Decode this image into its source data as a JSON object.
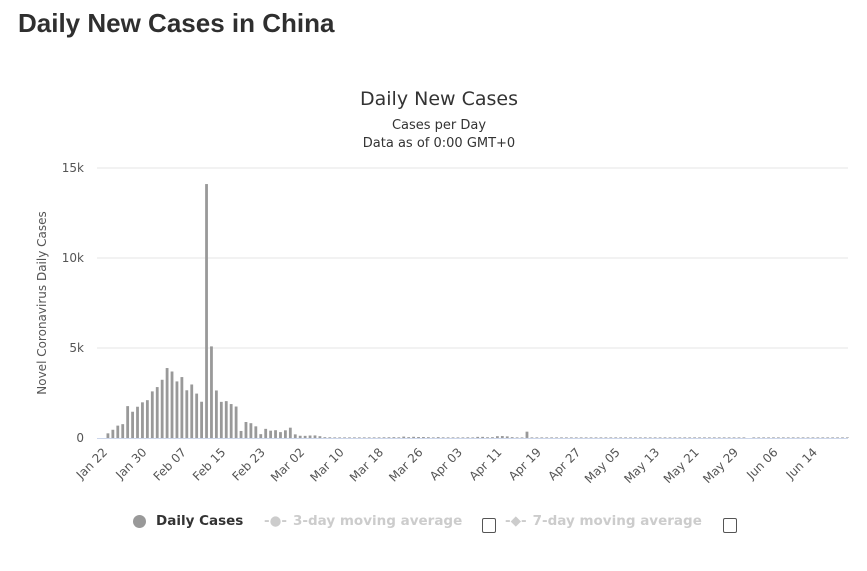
{
  "page": {
    "title": "Daily New Cases in China"
  },
  "chart_data": {
    "type": "bar",
    "title": "Daily New Cases",
    "subtitle": [
      "Cases per Day",
      "Data as of 0:00 GMT+0"
    ],
    "xlabel": "",
    "ylabel": "Novel Coronavirus Daily Cases",
    "ylim": [
      0,
      15000
    ],
    "yticks": [
      {
        "v": 0,
        "label": "0"
      },
      {
        "v": 5000,
        "label": "5k"
      },
      {
        "v": 10000,
        "label": "10k"
      },
      {
        "v": 15000,
        "label": "15k"
      }
    ],
    "start_date": "Jan 22",
    "xtick_every_days": 8,
    "xtick_labels": [
      "Jan 22",
      "Jan 30",
      "Feb 07",
      "Feb 15",
      "Feb 23",
      "Mar 02",
      "Mar 10",
      "Mar 18",
      "Mar 26",
      "Apr 03",
      "Apr 11",
      "Apr 19",
      "Apr 27",
      "May 05",
      "May 13",
      "May 21",
      "May 29",
      "Jun 06",
      "Jun 14"
    ],
    "series": [
      {
        "name": "Daily Cases",
        "color": "#999999",
        "values": [
          0,
          259,
          457,
          688,
          769,
          1771,
          1459,
          1737,
          1982,
          2102,
          2590,
          2829,
          3235,
          3887,
          3694,
          3143,
          3385,
          2652,
          2973,
          2467,
          2015,
          14108,
          5090,
          2641,
          2008,
          2048,
          1886,
          1749,
          391,
          889,
          823,
          648,
          214,
          508,
          406,
          433,
          327,
          427,
          573,
          202,
          125,
          119,
          139,
          143,
          99,
          44,
          40,
          19,
          24,
          15,
          8,
          11,
          20,
          16,
          21,
          13,
          34,
          39,
          41,
          46,
          39,
          78,
          47,
          67,
          55,
          54,
          45,
          31,
          48,
          36,
          35,
          31,
          19,
          30,
          39,
          32,
          62,
          63,
          42,
          46,
          99,
          108,
          89,
          46,
          26,
          27,
          352,
          16,
          12,
          11,
          30,
          10,
          6,
          12,
          11,
          3,
          22,
          2,
          4,
          12,
          2,
          1,
          2,
          1,
          1,
          1,
          2,
          4,
          1,
          17,
          1,
          7,
          3,
          4,
          5,
          8,
          6,
          4,
          3,
          5,
          11,
          2,
          4,
          7,
          2,
          3,
          5,
          2,
          3,
          3,
          3,
          0,
          7,
          3,
          6,
          2,
          6,
          2,
          3,
          5,
          3,
          11,
          11,
          6,
          20,
          18,
          15,
          12,
          10,
          9,
          8,
          7
        ]
      }
    ],
    "legend": {
      "placement": "bottom",
      "items": [
        {
          "label": "Daily Cases",
          "active": true
        },
        {
          "label": "3-day moving average",
          "active": false
        },
        {
          "label": "7-day moving average",
          "active": false
        }
      ]
    },
    "grid": true
  }
}
